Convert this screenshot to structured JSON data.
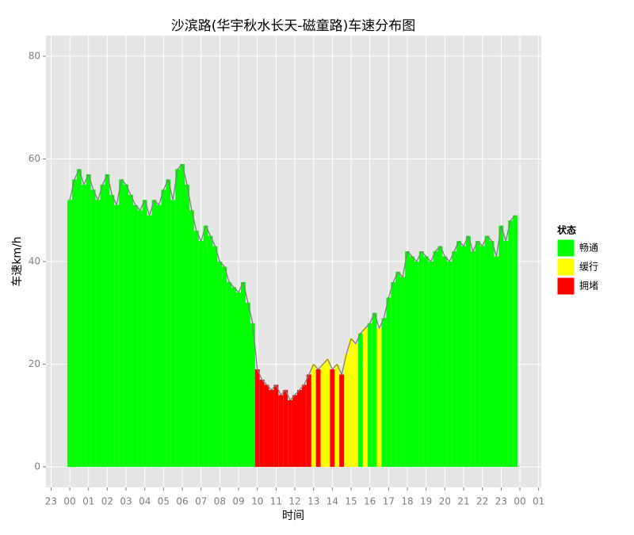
{
  "chart_data": {
    "type": "bar",
    "title": "沙滨路(华宇秋水长天-磁童路)车速分布图",
    "x_label": "时间",
    "y_label": "车速km/h",
    "legend_title": "状态",
    "legend_position": "right",
    "grid": true,
    "line_color": "#808080",
    "xlim": [
      -1.27,
      25.14
    ],
    "ylim": [
      -4,
      84
    ],
    "xticks": [
      {
        "value": -1,
        "label": "23"
      },
      {
        "value": 0,
        "label": "00"
      },
      {
        "value": 1,
        "label": "01"
      },
      {
        "value": 2,
        "label": "02"
      },
      {
        "value": 3,
        "label": "03"
      },
      {
        "value": 4,
        "label": "04"
      },
      {
        "value": 5,
        "label": "05"
      },
      {
        "value": 6,
        "label": "06"
      },
      {
        "value": 7,
        "label": "07"
      },
      {
        "value": 8,
        "label": "08"
      },
      {
        "value": 9,
        "label": "09"
      },
      10,
      11,
      12,
      13,
      14,
      15,
      16,
      17,
      18,
      19,
      20,
      21,
      22,
      23,
      {
        "value": 24,
        "label": "00"
      },
      {
        "value": 25,
        "label": "01"
      }
    ],
    "yticks": [
      0,
      20,
      40,
      60,
      80
    ],
    "x": [
      0,
      0.25,
      0.5,
      0.75,
      1,
      1.25,
      1.5,
      1.75,
      2,
      2.25,
      2.5,
      2.75,
      3,
      3.25,
      3.5,
      3.75,
      4,
      4.25,
      4.5,
      4.75,
      5,
      5.25,
      5.5,
      5.75,
      6,
      6.25,
      6.5,
      6.75,
      7,
      7.25,
      7.5,
      7.75,
      8,
      8.25,
      8.5,
      8.75,
      9,
      9.25,
      9.5,
      9.75,
      10,
      10.25,
      10.5,
      10.75,
      11,
      11.25,
      11.5,
      11.75,
      12,
      12.25,
      12.5,
      12.75,
      13,
      13.25,
      13.5,
      13.75,
      14,
      14.25,
      14.5,
      14.75,
      15,
      15.25,
      15.5,
      15.75,
      16,
      16.25,
      16.5,
      16.75,
      17,
      17.25,
      17.5,
      17.75,
      18,
      18.25,
      18.5,
      18.75,
      19,
      19.25,
      19.5,
      19.75,
      20,
      20.25,
      20.5,
      20.75,
      21,
      21.25,
      21.5,
      21.75,
      22,
      22.25,
      22.5,
      22.75,
      23,
      23.25,
      23.5,
      23.75
    ],
    "series": [
      {
        "name": "畅通",
        "color": "#00ff00",
        "values": [
          52,
          56,
          58,
          55,
          57,
          54,
          52,
          55,
          57,
          53,
          51,
          56,
          55,
          53,
          51,
          50,
          52,
          49,
          52,
          51,
          54,
          56,
          52,
          58,
          59,
          55,
          50,
          46,
          44,
          47,
          45,
          43,
          40,
          39,
          36,
          35,
          34,
          36,
          32,
          28,
          null,
          null,
          null,
          null,
          null,
          null,
          null,
          null,
          null,
          null,
          null,
          null,
          null,
          null,
          null,
          null,
          null,
          null,
          null,
          null,
          null,
          null,
          26,
          null,
          28,
          30,
          null,
          29,
          33,
          36,
          38,
          37,
          42,
          41,
          40,
          42,
          41,
          40,
          42,
          43,
          41,
          40,
          42,
          44,
          43,
          45,
          42,
          44,
          43,
          45,
          44,
          41,
          47,
          44,
          48,
          49
        ]
      },
      {
        "name": "缓行",
        "color": "#ffff00",
        "values": [
          null,
          null,
          null,
          null,
          null,
          null,
          null,
          null,
          null,
          null,
          null,
          null,
          null,
          null,
          null,
          null,
          null,
          null,
          null,
          null,
          null,
          null,
          null,
          null,
          null,
          null,
          null,
          null,
          null,
          null,
          null,
          null,
          null,
          null,
          null,
          null,
          null,
          null,
          null,
          null,
          null,
          null,
          null,
          null,
          null,
          null,
          null,
          null,
          null,
          null,
          null,
          null,
          20,
          null,
          20,
          21,
          null,
          20,
          null,
          22,
          25,
          24,
          null,
          27,
          null,
          null,
          27,
          null,
          null,
          null,
          null,
          null,
          null,
          null,
          null,
          null,
          null,
          null,
          null,
          null,
          null,
          null,
          null,
          null,
          null,
          null,
          null,
          null,
          null,
          null,
          null,
          null,
          null,
          null,
          null,
          null
        ]
      },
      {
        "name": "拥堵",
        "color": "#ff0000",
        "values": [
          null,
          null,
          null,
          null,
          null,
          null,
          null,
          null,
          null,
          null,
          null,
          null,
          null,
          null,
          null,
          null,
          null,
          null,
          null,
          null,
          null,
          null,
          null,
          null,
          null,
          null,
          null,
          null,
          null,
          null,
          null,
          null,
          null,
          null,
          null,
          null,
          null,
          null,
          null,
          null,
          19,
          17,
          16,
          15,
          16,
          14,
          15,
          13,
          14,
          15,
          16,
          18,
          null,
          19,
          null,
          null,
          19,
          null,
          18,
          null,
          null,
          null,
          null,
          null,
          null,
          null,
          null,
          null,
          null,
          null,
          null,
          null,
          null,
          null,
          null,
          null,
          null,
          null,
          null,
          null,
          null,
          null,
          null,
          null,
          null,
          null,
          null,
          null,
          null,
          null,
          null,
          null,
          null,
          null,
          null,
          null
        ]
      }
    ]
  }
}
